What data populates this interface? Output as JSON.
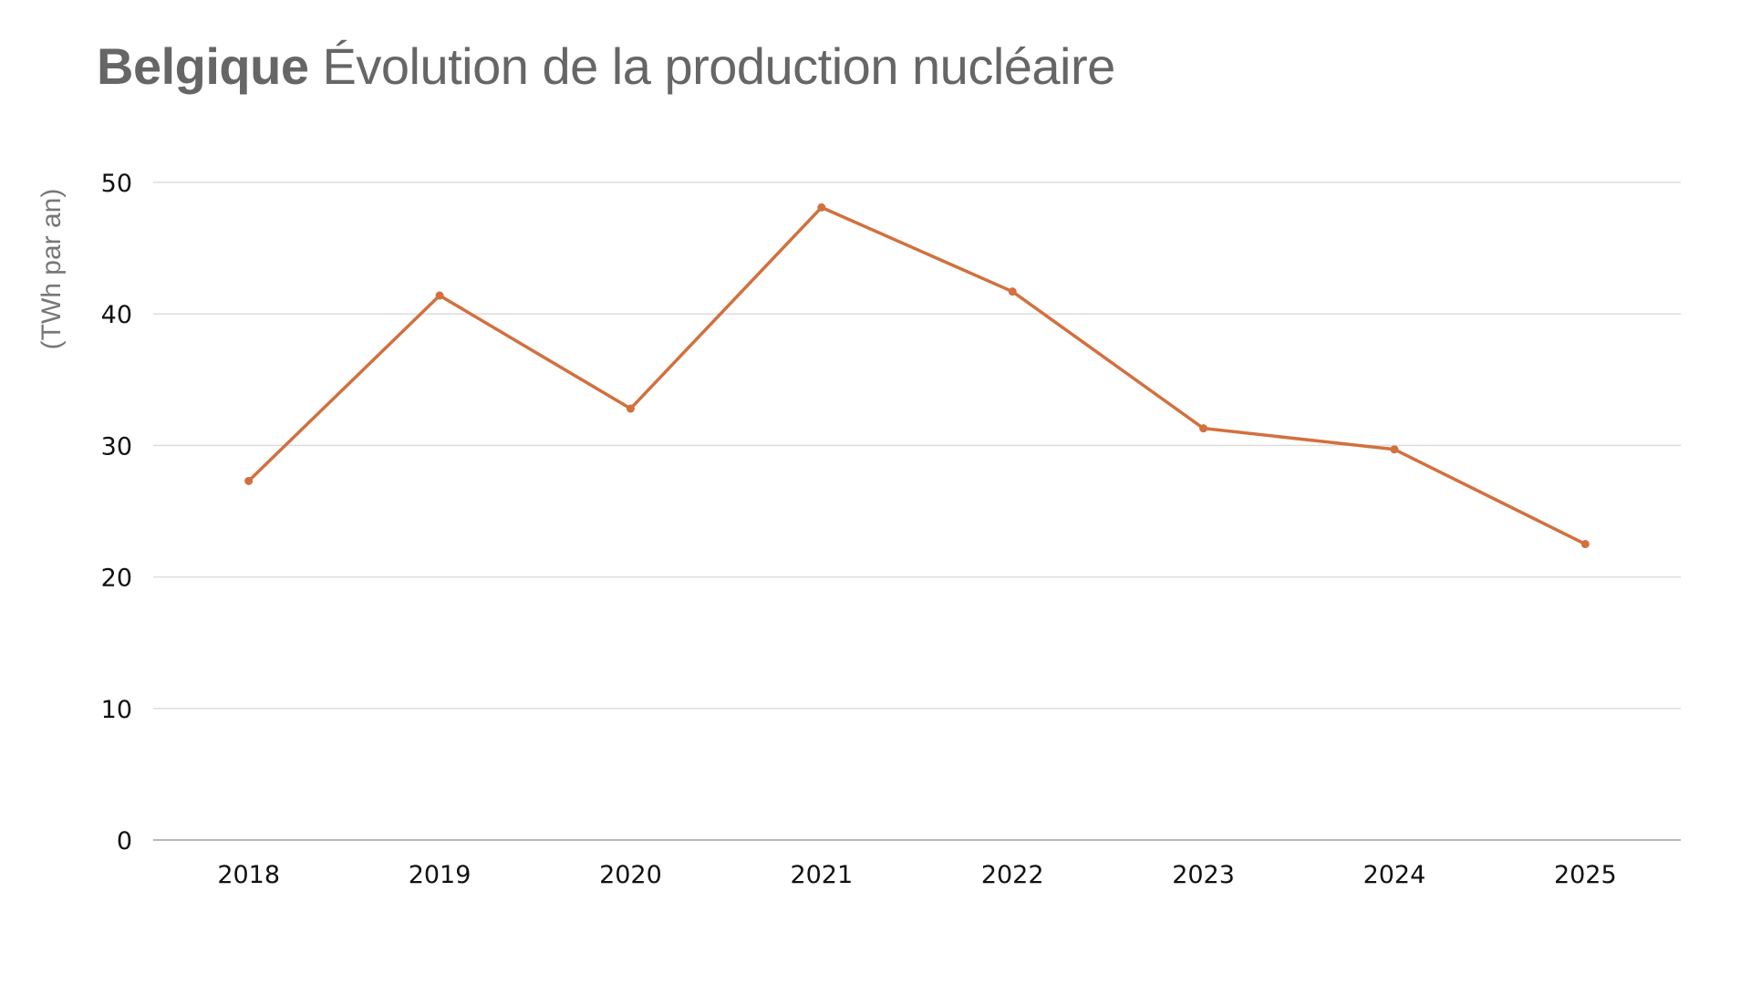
{
  "title": {
    "bold": "Belgique",
    "rest": "Évolution de la production nucléaire"
  },
  "chart_data": {
    "type": "line",
    "title": "Belgique Évolution de la production nucléaire",
    "xlabel": "",
    "ylabel": "(TWh par an)",
    "categories": [
      "2018",
      "2019",
      "2020",
      "2021",
      "2022",
      "2023",
      "2024",
      "2025"
    ],
    "series": [
      {
        "name": "Production nucléaire",
        "color": "#D2703E",
        "values": [
          27.3,
          41.4,
          32.8,
          48.1,
          41.7,
          31.3,
          29.7,
          22.5
        ]
      }
    ],
    "ylim": [
      0,
      50
    ],
    "yticks": [
      0,
      10,
      20,
      30,
      40,
      50
    ],
    "grid": true,
    "legend": "none"
  }
}
